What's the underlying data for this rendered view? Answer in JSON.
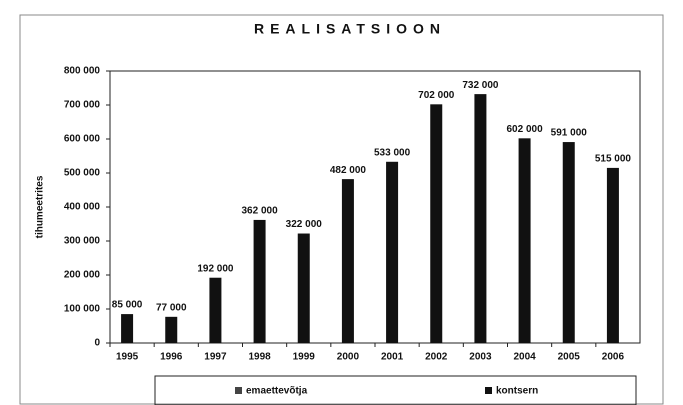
{
  "chart_data": {
    "type": "bar",
    "title": "REALISATSIOON",
    "y_label": "tihumeetrites",
    "categories": [
      "1995",
      "1996",
      "1997",
      "1998",
      "1999",
      "2000",
      "2001",
      "2002",
      "2003",
      "2004",
      "2005",
      "2006"
    ],
    "series": [
      {
        "name": "emaettevõtja",
        "color": "#444444",
        "values": [
          null,
          null,
          null,
          null,
          null,
          null,
          null,
          null,
          null,
          null,
          null,
          null
        ]
      },
      {
        "name": "kontsern",
        "color": "#111111",
        "values": [
          85000,
          77000,
          192000,
          362000,
          322000,
          482000,
          533000,
          702000,
          732000,
          602000,
          591000,
          515000
        ],
        "value_labels": [
          "85 000",
          "77 000",
          "192 000",
          "362 000",
          "322 000",
          "482 000",
          "533 000",
          "702 000",
          "732 000",
          "602 000",
          "591 000",
          "515 000"
        ]
      }
    ],
    "ylim": [
      0,
      800000
    ],
    "yticks": [
      0,
      {
        "value": 100000,
        "label": "100 000"
      },
      {
        "value": 200000,
        "label": "200 000"
      },
      {
        "value": 300000,
        "label": "300 000"
      },
      {
        "value": 400000,
        "label": "400 000"
      },
      {
        "value": 500000,
        "label": "500 000"
      },
      {
        "value": 600000,
        "label": "600 000"
      },
      {
        "value": 700000,
        "label": "700 000"
      },
      {
        "value": 800000,
        "label": "800 000"
      }
    ],
    "legend": "bottom"
  }
}
